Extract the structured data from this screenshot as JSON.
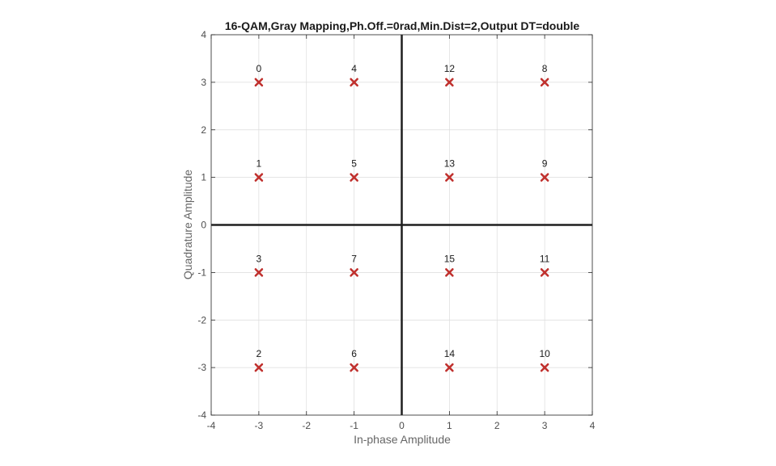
{
  "chart_data": {
    "type": "scatter",
    "title": "16-QAM,Gray Mapping,Ph.Off.=0rad,Min.Dist=2,Output DT=double",
    "xlabel": "In-phase Amplitude",
    "ylabel": "Quadrature Amplitude",
    "xlim": [
      -4,
      4
    ],
    "ylim": [
      -4,
      4
    ],
    "xticks": [
      -4,
      -3,
      -2,
      -1,
      0,
      1,
      2,
      3,
      4
    ],
    "yticks": [
      -4,
      -3,
      -2,
      -1,
      0,
      1,
      2,
      3,
      4
    ],
    "grid": true,
    "marker": "x",
    "marker_color": "#c0302d",
    "points": [
      {
        "x": -3,
        "y": 3,
        "label": "0"
      },
      {
        "x": -1,
        "y": 3,
        "label": "4"
      },
      {
        "x": 1,
        "y": 3,
        "label": "12"
      },
      {
        "x": 3,
        "y": 3,
        "label": "8"
      },
      {
        "x": -3,
        "y": 1,
        "label": "1"
      },
      {
        "x": -1,
        "y": 1,
        "label": "5"
      },
      {
        "x": 1,
        "y": 1,
        "label": "13"
      },
      {
        "x": 3,
        "y": 1,
        "label": "9"
      },
      {
        "x": -3,
        "y": -1,
        "label": "3"
      },
      {
        "x": -1,
        "y": -1,
        "label": "7"
      },
      {
        "x": 1,
        "y": -1,
        "label": "15"
      },
      {
        "x": 3,
        "y": -1,
        "label": "11"
      },
      {
        "x": -3,
        "y": -3,
        "label": "2"
      },
      {
        "x": -1,
        "y": -3,
        "label": "6"
      },
      {
        "x": 1,
        "y": -3,
        "label": "14"
      },
      {
        "x": 3,
        "y": -3,
        "label": "10"
      }
    ]
  }
}
